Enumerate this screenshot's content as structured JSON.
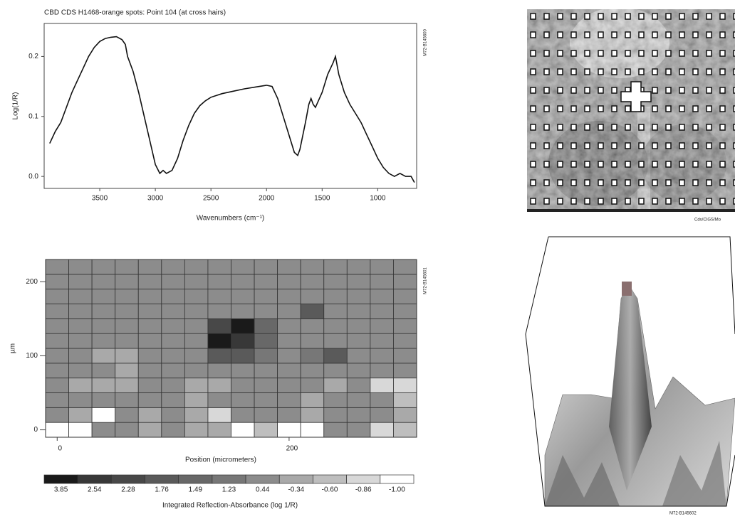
{
  "chart_data": [
    {
      "type": "line",
      "title": "CBD CDS H1468-orange spots: Point 104 (at cross hairs)",
      "x_label": "Wavenumbers (cm⁻¹)",
      "y_label": "Log(1/R)",
      "id_label": "M72-B145600",
      "color": "#111111",
      "xlim": [
        4000,
        650
      ],
      "ylim": [
        -0.02,
        0.255
      ],
      "xticks": [
        3500,
        3000,
        2500,
        2000,
        1500,
        1000
      ],
      "yticks": [
        {
          "value": 0,
          "label": "0.0"
        },
        0.1,
        0.2
      ],
      "x": [
        3950,
        3900,
        3850,
        3800,
        3750,
        3700,
        3650,
        3600,
        3550,
        3500,
        3450,
        3400,
        3350,
        3300,
        3270,
        3250,
        3200,
        3150,
        3100,
        3050,
        3000,
        2960,
        2930,
        2900,
        2850,
        2800,
        2750,
        2700,
        2650,
        2600,
        2550,
        2500,
        2400,
        2300,
        2200,
        2100,
        2000,
        1950,
        1900,
        1850,
        1800,
        1750,
        1720,
        1700,
        1650,
        1620,
        1600,
        1580,
        1560,
        1500,
        1450,
        1400,
        1380,
        1350,
        1300,
        1250,
        1200,
        1150,
        1100,
        1050,
        1000,
        950,
        900,
        850,
        800,
        750,
        700,
        670
      ],
      "values": [
        0.055,
        0.075,
        0.09,
        0.115,
        0.14,
        0.16,
        0.18,
        0.2,
        0.215,
        0.225,
        0.23,
        0.232,
        0.233,
        0.228,
        0.22,
        0.2,
        0.175,
        0.14,
        0.1,
        0.06,
        0.02,
        0.005,
        0.01,
        0.005,
        0.01,
        0.03,
        0.06,
        0.085,
        0.105,
        0.118,
        0.126,
        0.132,
        0.138,
        0.142,
        0.146,
        0.149,
        0.152,
        0.15,
        0.13,
        0.1,
        0.07,
        0.04,
        0.035,
        0.045,
        0.09,
        0.12,
        0.13,
        0.12,
        0.115,
        0.14,
        0.17,
        0.19,
        0.2,
        0.17,
        0.14,
        0.12,
        0.105,
        0.09,
        0.07,
        0.05,
        0.03,
        0.015,
        0.005,
        0,
        0.005,
        0,
        0,
        -0.01
      ]
    },
    {
      "type": "heatmap",
      "x_label": "Position (micrometers)",
      "y_label": "µm",
      "id_label": "M72-B145601",
      "xlim": [
        -10,
        310
      ],
      "ylim": [
        -10,
        230
      ],
      "xticks": [
        0,
        200
      ],
      "yticks": [
        0,
        100,
        200
      ],
      "x": [
        0,
        20,
        40,
        60,
        80,
        100,
        120,
        140,
        160,
        180,
        200,
        220,
        240,
        260,
        280,
        300
      ],
      "y": [
        0,
        20,
        40,
        60,
        80,
        100,
        120,
        140,
        160,
        180,
        200,
        220
      ],
      "z": [
        [
          -1,
          -1,
          0.44,
          0.44,
          -0.34,
          0.44,
          -0.34,
          -0.34,
          -1,
          -0.6,
          -1,
          -1,
          0.44,
          0.44,
          -0.86,
          -0.6
        ],
        [
          0.44,
          -0.34,
          -1,
          0.44,
          -0.34,
          0.44,
          -0.34,
          -0.86,
          0.44,
          0.44,
          0.44,
          -0.34,
          0.44,
          0.44,
          0.44,
          -0.34
        ],
        [
          0.44,
          0.44,
          0.44,
          0.44,
          0.44,
          0.44,
          -0.34,
          0.44,
          0.44,
          0.44,
          0.44,
          -0.34,
          0.44,
          0.44,
          0.44,
          -0.6
        ],
        [
          0.44,
          -0.34,
          -0.34,
          -0.34,
          0.44,
          0.44,
          -0.34,
          -0.34,
          0.44,
          0.44,
          0.44,
          0.44,
          -0.34,
          0.44,
          -0.86,
          -0.86
        ],
        [
          0.44,
          0.44,
          0.44,
          -0.34,
          0.44,
          0.44,
          0.44,
          0.44,
          0.44,
          0.44,
          0.44,
          0.44,
          0.44,
          0.44,
          0.44,
          0.44
        ],
        [
          0.44,
          0.44,
          -0.34,
          -0.34,
          0.44,
          0.44,
          0.44,
          1.76,
          1.76,
          1.23,
          0.44,
          1.23,
          1.76,
          0.44,
          0.44,
          0.44
        ],
        [
          0.44,
          0.44,
          0.44,
          0.44,
          0.44,
          0.44,
          0.44,
          3.85,
          2.54,
          1.49,
          0.44,
          0.44,
          0.44,
          0.44,
          0.44,
          0.44
        ],
        [
          0.44,
          0.44,
          0.44,
          0.44,
          0.44,
          0.44,
          0.44,
          2.28,
          3.85,
          1.49,
          0.44,
          0.44,
          0.44,
          0.44,
          0.44,
          0.44
        ],
        [
          0.44,
          0.44,
          0.44,
          0.44,
          0.44,
          0.44,
          0.44,
          0.44,
          0.44,
          0.44,
          0.44,
          1.76,
          0.44,
          0.44,
          0.44,
          0.44
        ],
        [
          0.44,
          0.44,
          0.44,
          0.44,
          0.44,
          0.44,
          0.44,
          0.44,
          0.44,
          0.44,
          0.44,
          0.44,
          0.44,
          0.44,
          0.44,
          0.44
        ],
        [
          0.44,
          0.44,
          0.44,
          0.44,
          0.44,
          0.44,
          0.44,
          0.44,
          0.44,
          0.44,
          0.44,
          0.44,
          0.44,
          0.44,
          0.44,
          0.44
        ],
        [
          0.44,
          0.44,
          0.44,
          0.44,
          0.44,
          0.44,
          0.44,
          0.44,
          0.44,
          0.44,
          0.44,
          0.44,
          0.44,
          0.44,
          0.44,
          0.44
        ]
      ],
      "colorbar": {
        "label": "Integrated Reflection-Absorbance (log 1/R)",
        "levels": [
          3.85,
          2.54,
          2.28,
          1.76,
          1.49,
          1.23,
          0.44,
          -0.34,
          {
            "value": -0.6,
            "label": "-0.60"
          },
          -0.86,
          {
            "value": -1,
            "label": "-1.00"
          }
        ],
        "colors": [
          "#1a1a1a",
          "#383838",
          "#484848",
          "#5a5a5a",
          "#686868",
          "#777777",
          "#8c8c8c",
          "#a9a9a9",
          "#bebebe",
          "#d8d8d8",
          "#ffffff"
        ]
      }
    }
  ],
  "images": {
    "top": {
      "caption": "Cds/CIGS/Mo"
    },
    "bottom": {
      "caption": "M72-B145602"
    }
  }
}
